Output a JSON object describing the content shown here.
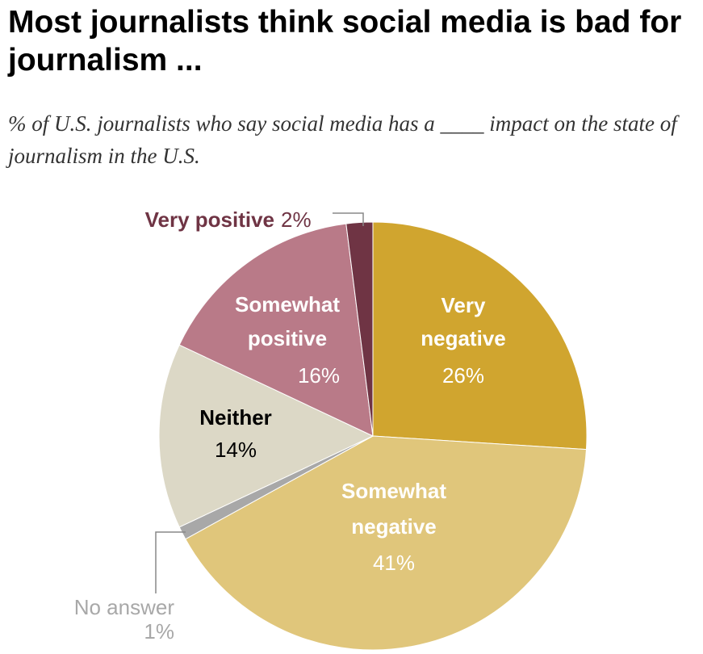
{
  "title": "Most journalists think social media is bad for journalism ...",
  "subtitle": "% of U.S. journalists who say social media has a ____ impact on the state of journalism in the U.S.",
  "chart_data": {
    "type": "pie",
    "title": "Most journalists think social media is bad for journalism ...",
    "subtitle": "% of U.S. journalists who say social media has a ____ impact on the state of journalism in the U.S.",
    "slices": [
      {
        "label": "Very negative",
        "value": 26,
        "value_label": "26%",
        "color": "#d0a52f"
      },
      {
        "label": "Somewhat negative",
        "value": 41,
        "value_label": "41%",
        "color": "#e0c67b"
      },
      {
        "label": "No answer",
        "value": 1,
        "value_label": "1%",
        "color": "#a8a8a8"
      },
      {
        "label": "Neither",
        "value": 14,
        "value_label": "14%",
        "color": "#dcd8c6"
      },
      {
        "label": "Somewhat positive",
        "value": 16,
        "value_label": "16%",
        "color": "#b97a88"
      },
      {
        "label": "Very positive",
        "value": 2,
        "value_label": "2%",
        "color": "#6f3444"
      }
    ]
  }
}
